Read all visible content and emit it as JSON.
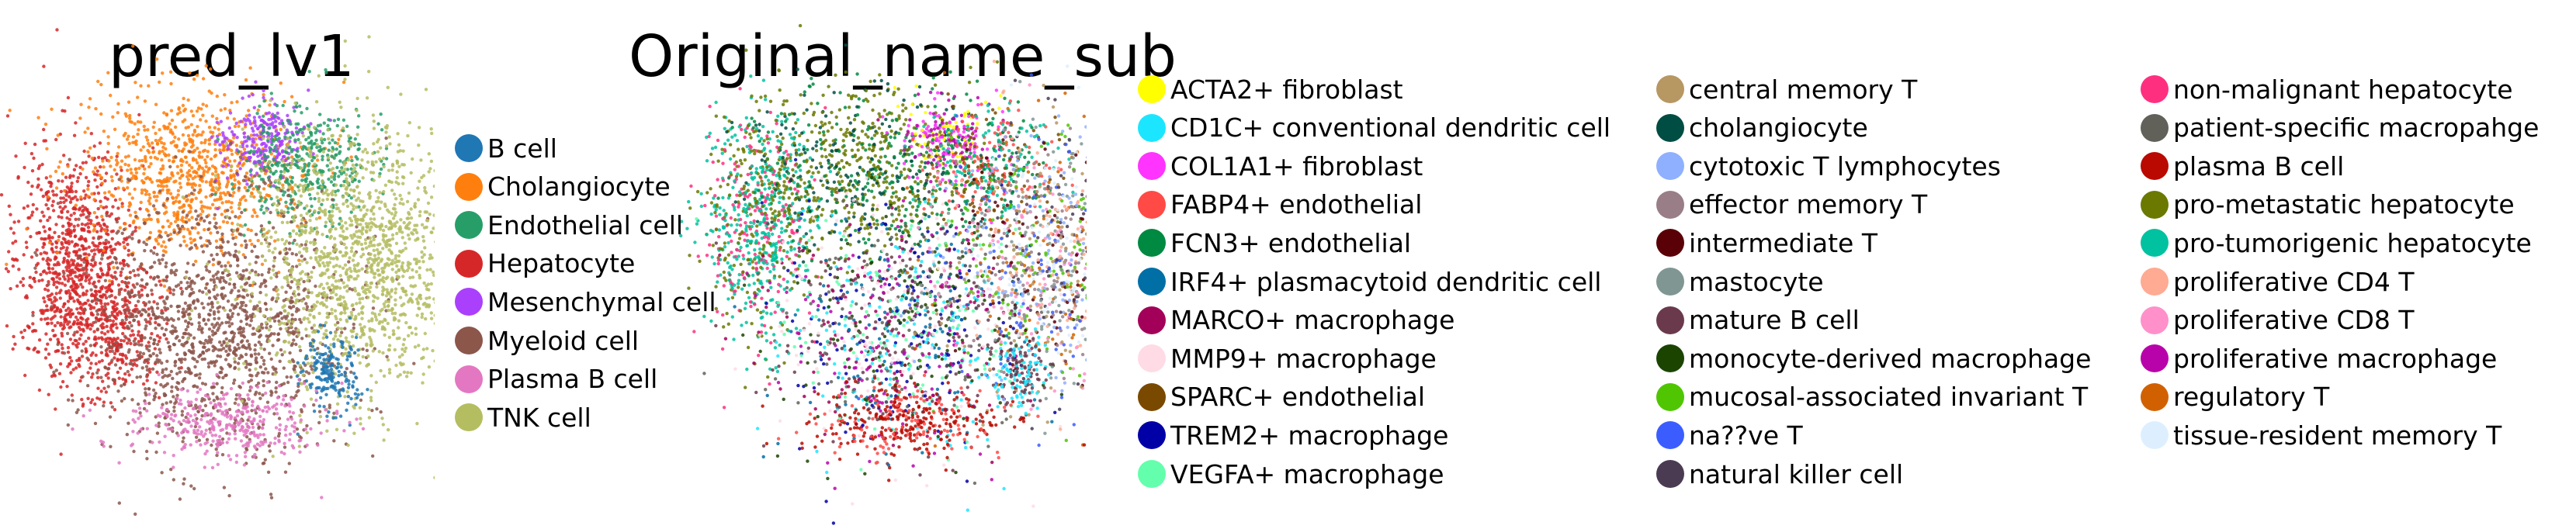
{
  "chart_data": [
    {
      "type": "scatter",
      "title": "pred_lv1",
      "xlabel": "",
      "ylabel": "",
      "grid": false,
      "legend_placement": "right",
      "series": [
        {
          "name": "B cell",
          "color": "#1f77b4"
        },
        {
          "name": "Cholangiocyte",
          "color": "#ff7f0e"
        },
        {
          "name": "Endothelial cell",
          "color": "#279e68"
        },
        {
          "name": "Hepatocyte",
          "color": "#d62728"
        },
        {
          "name": "Mesenchymal cell",
          "color": "#aa40fc"
        },
        {
          "name": "Myeloid cell",
          "color": "#8c564b"
        },
        {
          "name": "Plasma B cell",
          "color": "#e377c2"
        },
        {
          "name": "TNK cell",
          "color": "#b5bd61"
        }
      ]
    },
    {
      "type": "scatter",
      "title": "Original_name_sub",
      "xlabel": "",
      "ylabel": "",
      "grid": false,
      "legend_placement": "right",
      "series": [
        {
          "name": "ACTA2+ fibroblast",
          "color": "#ffff00"
        },
        {
          "name": "CD1C+ conventional dendritic cell",
          "color": "#1ce6ff"
        },
        {
          "name": "COL1A1+ fibroblast",
          "color": "#ff34ff"
        },
        {
          "name": "FABP4+ endothelial",
          "color": "#ff4a46"
        },
        {
          "name": "FCN3+ endothelial",
          "color": "#008941"
        },
        {
          "name": "IRF4+ plasmacytoid dendritic cell",
          "color": "#006fa6"
        },
        {
          "name": "MARCO+ macrophage",
          "color": "#a30059"
        },
        {
          "name": "MMP9+ macrophage",
          "color": "#ffdbe5"
        },
        {
          "name": "SPARC+ endothelial",
          "color": "#7a4900"
        },
        {
          "name": "TREM2+ macrophage",
          "color": "#0000a6"
        },
        {
          "name": "VEGFA+ macrophage",
          "color": "#63ffac"
        },
        {
          "name": "central memory T",
          "color": "#b79762"
        },
        {
          "name": "cholangiocyte",
          "color": "#004d43"
        },
        {
          "name": "cytotoxic T lymphocytes",
          "color": "#8fb0ff"
        },
        {
          "name": "effector memory T",
          "color": "#997d87"
        },
        {
          "name": "intermediate T",
          "color": "#5a0007"
        },
        {
          "name": "mastocyte",
          "color": "#809693"
        },
        {
          "name": "mature B cell",
          "color": "#6a3a4c"
        },
        {
          "name": "monocyte-derived macrophage",
          "color": "#1b4400"
        },
        {
          "name": "mucosal-associated invariant T",
          "color": "#4fc601"
        },
        {
          "name": "na??ve T",
          "color": "#3b5dff"
        },
        {
          "name": "natural killer cell",
          "color": "#4a3b53"
        },
        {
          "name": "non-malignant hepatocyte",
          "color": "#ff2f80"
        },
        {
          "name": "patient-specific macropahge",
          "color": "#61615a"
        },
        {
          "name": "plasma B cell",
          "color": "#ba0900"
        },
        {
          "name": "pro-metastatic hepatocyte",
          "color": "#6b7900"
        },
        {
          "name": "pro-tumorigenic hepatocyte",
          "color": "#00c2a0"
        },
        {
          "name": "proliferative CD4 T",
          "color": "#ffaa92"
        },
        {
          "name": "proliferative CD8 T",
          "color": "#ff90c9"
        },
        {
          "name": "proliferative macrophage",
          "color": "#b903aa"
        },
        {
          "name": "regulatory T",
          "color": "#d16100"
        },
        {
          "name": "tissue-resident memory T",
          "color": "#ddefff"
        }
      ]
    }
  ]
}
